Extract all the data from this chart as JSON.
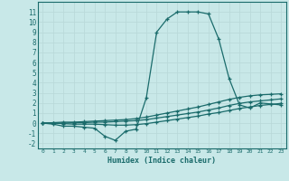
{
  "xlabel": "Humidex (Indice chaleur)",
  "background_color": "#c8e8e8",
  "grid_color": "#d0e8e8",
  "line_color": "#1a6b6b",
  "xlim": [
    -0.5,
    23.5
  ],
  "ylim": [
    -2.5,
    12.0
  ],
  "xticks": [
    0,
    1,
    2,
    3,
    4,
    5,
    6,
    7,
    8,
    9,
    10,
    11,
    12,
    13,
    14,
    15,
    16,
    17,
    18,
    19,
    20,
    21,
    22,
    23
  ],
  "yticks": [
    -2,
    -1,
    0,
    1,
    2,
    3,
    4,
    5,
    6,
    7,
    8,
    9,
    10,
    11
  ],
  "curve1_x": [
    0,
    1,
    2,
    3,
    4,
    5,
    6,
    7,
    8,
    9,
    10,
    11,
    12,
    13,
    14,
    15,
    16,
    17,
    18,
    19,
    20,
    21,
    22,
    23
  ],
  "curve1_y": [
    0.0,
    -0.1,
    -0.3,
    -0.3,
    -0.4,
    -0.5,
    -1.3,
    -1.7,
    -0.8,
    -0.6,
    2.5,
    9.0,
    10.3,
    11.0,
    11.0,
    11.0,
    10.8,
    8.3,
    4.4,
    1.8,
    1.5,
    2.0,
    1.9,
    1.8
  ],
  "curve2_x": [
    0,
    1,
    2,
    3,
    4,
    5,
    6,
    7,
    8,
    9,
    10,
    11,
    12,
    13,
    14,
    15,
    16,
    17,
    18,
    19,
    20,
    21,
    22,
    23
  ],
  "curve2_y": [
    0.0,
    0.05,
    0.1,
    0.1,
    0.15,
    0.2,
    0.25,
    0.3,
    0.35,
    0.45,
    0.6,
    0.8,
    1.0,
    1.2,
    1.4,
    1.6,
    1.85,
    2.1,
    2.35,
    2.55,
    2.7,
    2.8,
    2.85,
    2.9
  ],
  "curve3_x": [
    0,
    1,
    2,
    3,
    4,
    5,
    6,
    7,
    8,
    9,
    10,
    11,
    12,
    13,
    14,
    15,
    16,
    17,
    18,
    19,
    20,
    21,
    22,
    23
  ],
  "curve3_y": [
    0.0,
    0.0,
    0.0,
    0.05,
    0.05,
    0.1,
    0.1,
    0.15,
    0.2,
    0.25,
    0.35,
    0.5,
    0.65,
    0.8,
    0.95,
    1.1,
    1.3,
    1.5,
    1.75,
    1.95,
    2.1,
    2.2,
    2.3,
    2.4
  ],
  "curve4_x": [
    0,
    1,
    2,
    3,
    4,
    5,
    6,
    7,
    8,
    9,
    10,
    11,
    12,
    13,
    14,
    15,
    16,
    17,
    18,
    19,
    20,
    21,
    22,
    23
  ],
  "curve4_y": [
    0.0,
    0.0,
    -0.05,
    -0.1,
    -0.1,
    -0.1,
    -0.15,
    -0.2,
    -0.2,
    -0.15,
    -0.05,
    0.1,
    0.25,
    0.4,
    0.55,
    0.7,
    0.9,
    1.05,
    1.25,
    1.45,
    1.6,
    1.75,
    1.85,
    1.95
  ]
}
